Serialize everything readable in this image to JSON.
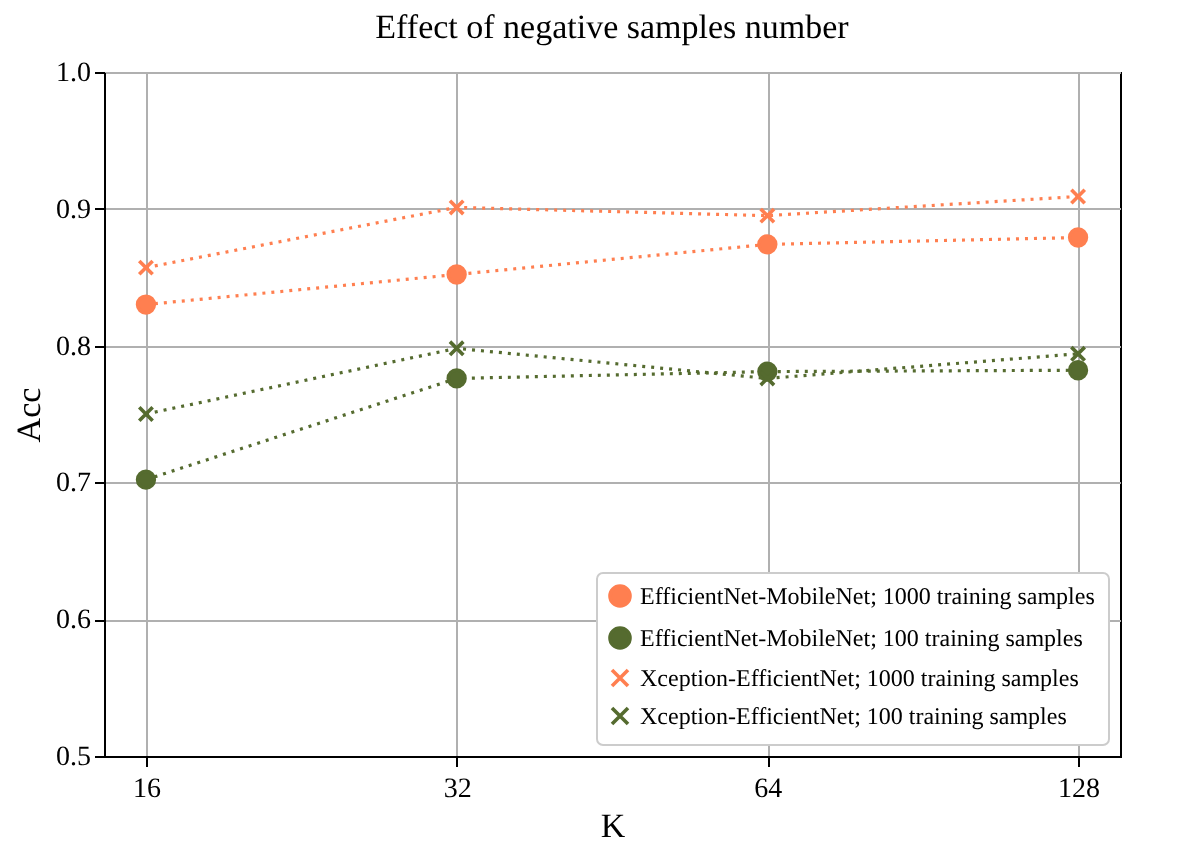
{
  "chart_data": {
    "type": "line",
    "title": "Effect of negative samples number",
    "xlabel": "K",
    "ylabel": "Acc",
    "categories": [
      "16",
      "32",
      "64",
      "128"
    ],
    "series": [
      {
        "name": "EfficientNet-MobileNet; 1000 training samples",
        "color": "#ff7f50",
        "marker": "circle",
        "values": [
          0.83,
          0.852,
          0.874,
          0.879
        ]
      },
      {
        "name": "EfficientNet-MobileNet; 100 training samples",
        "color": "#556b2f",
        "marker": "circle",
        "values": [
          0.702,
          0.776,
          0.781,
          0.782
        ]
      },
      {
        "name": "Xception-EfficientNet; 1000 training samples",
        "color": "#ff7f50",
        "marker": "cross",
        "values": [
          0.857,
          0.901,
          0.895,
          0.909
        ]
      },
      {
        "name": "Xception-EfficientNet; 100 training samples",
        "color": "#556b2f",
        "marker": "cross",
        "values": [
          0.75,
          0.798,
          0.776,
          0.794
        ]
      }
    ],
    "ylim": [
      0.5,
      1.0
    ],
    "yticks": [
      0.5,
      0.6,
      0.7,
      0.8,
      0.9,
      {
        "value": 1,
        "label": "1.0"
      }
    ],
    "grid": true,
    "legend": "bottom right",
    "line_style": "dotted"
  }
}
